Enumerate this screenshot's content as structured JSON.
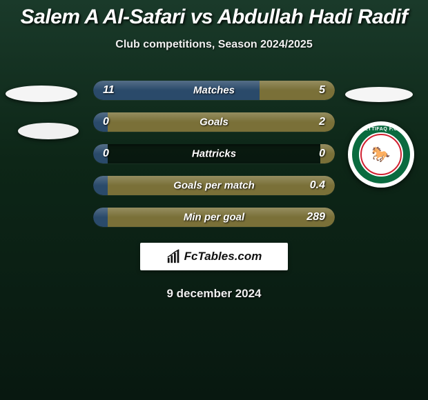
{
  "title": "Salem A Al-Safari vs Abdullah Hadi Radif",
  "subtitle": "Club competitions, Season 2024/2025",
  "date": "9 december 2024",
  "track_width": 350,
  "colors": {
    "bg_gradient_top": "#1a3a2a",
    "bg_gradient_mid": "#0d2617",
    "bg_gradient_bot": "#081810",
    "left_bar": "#2a4a6a",
    "right_bar": "#7a7038",
    "text": "#ffffff",
    "badge_ring": "#0a6b3f",
    "badge_accent": "#d02030"
  },
  "badge": {
    "top_text": "ETTIFAQ F.C",
    "emoji": "🐎"
  },
  "brand": "FcTables.com",
  "rows": [
    {
      "label": "Matches",
      "left": "11",
      "right": "5",
      "left_pct": 68.75,
      "right_pct": 31.25
    },
    {
      "label": "Goals",
      "left": "0",
      "right": "2",
      "left_pct": 6,
      "right_pct": 94
    },
    {
      "label": "Hattricks",
      "left": "0",
      "right": "0",
      "left_pct": 6,
      "right_pct": 6
    },
    {
      "label": "Goals per match",
      "left": "",
      "right": "0.4",
      "left_pct": 6,
      "right_pct": 94
    },
    {
      "label": "Min per goal",
      "left": "",
      "right": "289",
      "left_pct": 6,
      "right_pct": 94
    }
  ]
}
